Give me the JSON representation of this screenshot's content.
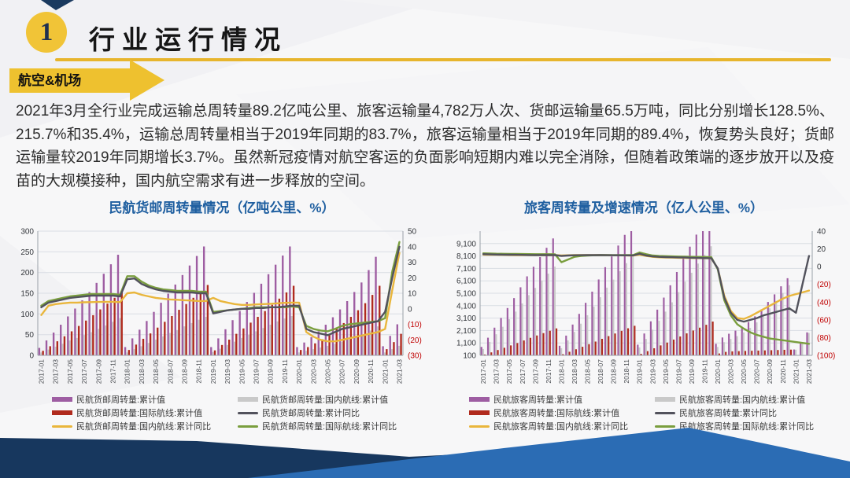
{
  "slide": {
    "section_number": "1",
    "title": "行业运行情况",
    "banner": "航空&机场",
    "paragraph": "2021年3月全行业完成运输总周转量89.2亿吨公里、旅客运输量4,782万人次、货邮运输量65.5万吨，同比分别增长128.5%、215.7%和35.4%，运输总周转量相当于2019年同期的83.7%，旅客运输量相当于2019年同期的89.4%，恢复势头良好；货邮运输量较2019年同期增长3.7%。虽然新冠疫情对航空客运的负面影响短期内难以完全消除，但随着政策端的逐步放开以及疫苗的大规模接种，国内航空需求有进一步释放的空间。"
  },
  "colors": {
    "accent_yellow": "#EEC12F",
    "navy": "#17375E",
    "mid_blue": "#2B6CB4",
    "title_blue": "#1F5FA0",
    "bar_purple": "#9E5DA2",
    "bar_red": "#B02A1D",
    "bar_gray": "#C9C9C9",
    "line_dark": "#52525C",
    "line_yellow": "#E9B63C",
    "line_green": "#7A9E3E",
    "neg_red": "#C00000"
  },
  "chart_data": [
    {
      "type": "combo_bar_line",
      "title": "民航货邮周转量情况（亿吨公里、%）",
      "n_points": 51,
      "x_labels": [
        "2017-01",
        "2017-03",
        "2017-05",
        "2017-07",
        "2017-09",
        "2017-11",
        "2018-01",
        "2018-03",
        "2018-05",
        "2018-07",
        "2018-09",
        "2018-11",
        "2019-01",
        "2019-03",
        "2019-05",
        "2019-07",
        "2019-09",
        "2019-11",
        "2020-01",
        "2020-03",
        "2020-05",
        "2020-07",
        "2020-09",
        "2020-11",
        "2021-01",
        "2021-03"
      ],
      "left_axis": {
        "min": 0,
        "max": 300,
        "ticks": [
          0,
          50,
          100,
          150,
          200,
          250,
          300
        ],
        "labels": [
          "0",
          "50",
          "100",
          "150",
          "200",
          "250",
          "300"
        ]
      },
      "right_axis": {
        "min": -30,
        "max": 50,
        "ticks": [
          50,
          40,
          30,
          20,
          10,
          0,
          -10,
          -20,
          -30
        ],
        "labels": [
          "50",
          "40",
          "30",
          "20",
          "10",
          "0",
          "(10)",
          "(20)",
          "(30)"
        ]
      },
      "bars": [
        {
          "name": "民航货邮周转量:累计值",
          "color": "bar_purple",
          "axis": "left",
          "values": [
            18,
            36,
            55,
            74,
            94,
            113,
            133,
            153,
            175,
            197,
            220,
            243,
            20,
            41,
            62,
            83,
            105,
            127,
            149,
            171,
            194,
            217,
            240,
            263,
            20,
            41,
            63,
            85,
            107,
            129,
            151,
            173,
            196,
            219,
            241,
            263,
            20,
            31,
            44,
            58,
            74,
            92,
            111,
            131,
            153,
            176,
            206,
            238,
            22,
            47,
            75
          ]
        },
        {
          "name": "民航货邮周转量:国内航线:累计值",
          "color": "bar_gray",
          "axis": "left",
          "values": [
            7,
            14,
            21,
            28,
            36,
            42,
            49,
            56,
            64,
            72,
            81,
            90,
            7,
            15,
            22,
            30,
            38,
            46,
            54,
            61,
            70,
            78,
            86,
            93,
            8,
            16,
            25,
            33,
            42,
            50,
            58,
            66,
            74,
            82,
            89,
            95,
            7,
            11,
            15,
            19,
            23,
            28,
            33,
            38,
            44,
            50,
            60,
            70,
            7,
            15,
            23
          ]
        },
        {
          "name": "民航货邮周转量:国际航线:累计值",
          "color": "bar_red",
          "axis": "left",
          "values": [
            11,
            22,
            34,
            46,
            58,
            71,
            84,
            97,
            111,
            125,
            139,
            153,
            13,
            26,
            40,
            53,
            67,
            81,
            95,
            110,
            124,
            139,
            154,
            170,
            12,
            25,
            38,
            52,
            65,
            79,
            93,
            107,
            122,
            137,
            152,
            168,
            13,
            20,
            29,
            39,
            51,
            64,
            78,
            93,
            109,
            126,
            146,
            168,
            15,
            32,
            52
          ]
        }
      ],
      "lines": [
        {
          "name": "民航货邮周转量:国内航线:累计同比",
          "color": "line_yellow",
          "axis": "right",
          "values": [
            -4,
            2,
            3,
            3.5,
            4,
            4,
            4.2,
            4.3,
            4.4,
            4.5,
            4.5,
            4.3,
            10,
            10.5,
            9,
            8,
            7,
            6.5,
            6,
            5.8,
            5.5,
            5.3,
            5,
            5,
            7,
            5,
            4,
            3,
            2.5,
            2.5,
            2.8,
            3,
            3.2,
            3.5,
            3.8,
            4,
            4,
            -15,
            -18,
            -20,
            -21,
            -21,
            -20,
            -19,
            -18,
            -17,
            -16,
            -15,
            -13,
            12,
            36
          ]
        },
        {
          "name": "民航货邮周转量:国际航线:累计同比",
          "color": "line_green",
          "axis": "right",
          "values": [
            2,
            5,
            6,
            7,
            8,
            8.5,
            9,
            9.5,
            9.5,
            9.5,
            9.5,
            9,
            21,
            21,
            17.5,
            15,
            13.5,
            12.5,
            12,
            11.5,
            11.5,
            11.5,
            11,
            11,
            -2,
            -1.5,
            -1,
            -0.5,
            0,
            0.5,
            1,
            1,
            1,
            1,
            1,
            1.5,
            1,
            -11,
            -13,
            -14,
            -14.5,
            -13,
            -11,
            -10,
            -9.5,
            -9,
            -8.5,
            -8,
            -6,
            24,
            43
          ]
        },
        {
          "name": "民航货邮周转量:累计同比",
          "color": "line_dark",
          "axis": "right",
          "values": [
            1,
            4,
            5,
            6,
            7,
            7.5,
            8,
            8.5,
            8.5,
            8.5,
            8.5,
            8,
            19,
            19.5,
            16,
            14,
            12.5,
            11.5,
            11,
            10.5,
            10.5,
            10.5,
            10,
            10,
            -3,
            -2,
            -1,
            -0.5,
            0,
            0,
            0.5,
            0.5,
            1,
            1,
            1.5,
            2,
            2,
            -13,
            -15,
            -16,
            -17,
            -15,
            -13,
            -12,
            -11,
            -10,
            -9,
            -8,
            -2,
            20,
            40
          ]
        }
      ],
      "legend": [
        {
          "label": "民航货邮周转量:累计值",
          "color": "bar_purple",
          "kind": "bar"
        },
        {
          "label": "民航货邮周转量:国内航线:累计值",
          "color": "bar_gray",
          "kind": "bar"
        },
        {
          "label": "民航货邮周转量:国际航线:累计值",
          "color": "bar_red",
          "kind": "bar"
        },
        {
          "label": "民航货邮周转量:累计同比",
          "color": "line_dark",
          "kind": "line"
        },
        {
          "label": "民航货邮周转量:国内航线:累计同比",
          "color": "line_yellow",
          "kind": "line"
        },
        {
          "label": "民航货邮周转量:国际航线:累计同比",
          "color": "line_green",
          "kind": "line"
        }
      ]
    },
    {
      "type": "combo_bar_line",
      "title": "旅客周转量及增速情况（亿人公里、%）",
      "n_points": 51,
      "x_labels": [
        "2017-01",
        "2017-03",
        "2017-05",
        "2017-07",
        "2017-09",
        "2017-11",
        "2018-01",
        "2018-03",
        "2018-05",
        "2018-07",
        "2018-09",
        "2018-11",
        "2019-01",
        "2019-03",
        "2019-05",
        "2019-07",
        "2019-09",
        "2019-11",
        "2020-01",
        "2020-03",
        "2020-05",
        "2020-07",
        "2020-09",
        "2020-11",
        "2021-01",
        "2021-03"
      ],
      "left_axis": {
        "min": 100,
        "max": 10100,
        "ticks": [
          100,
          1100,
          2100,
          3100,
          4100,
          5100,
          6100,
          7100,
          8100,
          9100
        ],
        "labels": [
          "100",
          "1,100",
          "2,100",
          "3,100",
          "4,100",
          "5,100",
          "6,100",
          "7,100",
          "8,100",
          "9,100"
        ]
      },
      "right_axis": {
        "min": -100,
        "max": 40,
        "ticks": [
          40,
          20,
          0,
          -20,
          -40,
          -60,
          -80,
          -100
        ],
        "labels": [
          "40",
          "20",
          "0",
          "(20)",
          "(40)",
          "(60)",
          "(80)",
          "(100)"
        ]
      },
      "bars": [
        {
          "name": "民航旅客周转量:累计值",
          "color": "bar_purple",
          "axis": "left",
          "values": [
            780,
            1520,
            2330,
            3110,
            3910,
            4710,
            5580,
            6460,
            7230,
            8010,
            8760,
            9513,
            870,
            1690,
            2580,
            3440,
            4330,
            5230,
            6210,
            7200,
            8060,
            8940,
            9800,
            10712,
            960,
            1860,
            2840,
            3780,
            4750,
            5740,
            6810,
            7900,
            8850,
            9820,
            10760,
            11705,
            1030,
            1540,
            1840,
            2090,
            2400,
            2780,
            3240,
            3800,
            4400,
            5010,
            5660,
            6311,
            570,
            1180,
            1950
          ]
        },
        {
          "name": "民航旅客周转量:国内航线:累计值",
          "color": "bar_gray",
          "axis": "left",
          "values": [
            610,
            1180,
            1800,
            2400,
            3010,
            3620,
            4280,
            4950,
            5530,
            6120,
            6680,
            7243,
            675,
            1300,
            1990,
            2650,
            3330,
            4020,
            4780,
            5550,
            6200,
            6870,
            7520,
            8232,
            740,
            1420,
            2170,
            2880,
            3620,
            4370,
            5190,
            6030,
            6750,
            7490,
            8200,
            8885,
            780,
            1160,
            1420,
            1650,
            1945,
            2310,
            2755,
            3300,
            3885,
            4480,
            5115,
            5751,
            555,
            1150,
            1905
          ]
        },
        {
          "name": "民航旅客周转量:国际航线:累计值",
          "color": "bar_red",
          "axis": "left",
          "values": [
            170,
            340,
            530,
            710,
            900,
            1090,
            1300,
            1510,
            1700,
            1890,
            2080,
            2270,
            195,
            390,
            590,
            790,
            1000,
            1210,
            1430,
            1650,
            1860,
            2070,
            2280,
            2480,
            220,
            440,
            670,
            900,
            1130,
            1370,
            1620,
            1870,
            2100,
            2330,
            2560,
            2820,
            250,
            380,
            420,
            440,
            455,
            470,
            485,
            500,
            515,
            530,
            545,
            560,
            15,
            30,
            45
          ]
        }
      ],
      "lines": [
        {
          "name": "民航旅客周转量:国内航线:累计同比",
          "color": "line_yellow",
          "axis": "right",
          "values": [
            13.5,
            13.4,
            13.3,
            13.2,
            13.1,
            13,
            13,
            13,
            13,
            13,
            13,
            13,
            12.5,
            12.8,
            13,
            13,
            13,
            13,
            13,
            12.9,
            12.8,
            12.7,
            12.6,
            12.5,
            13.5,
            12,
            11,
            10.5,
            10.3,
            10.1,
            10,
            9.8,
            9.7,
            9.6,
            9.5,
            9.4,
            -2,
            -33,
            -50,
            -58,
            -59,
            -56,
            -52,
            -48,
            -44,
            -40,
            -36,
            -33,
            -31,
            -29,
            -27
          ]
        },
        {
          "name": "民航旅客周转量:国际航线:累计同比",
          "color": "line_green",
          "axis": "right",
          "values": [
            15,
            14.8,
            14.6,
            14.5,
            14.4,
            14.3,
            14.2,
            14.1,
            14,
            14,
            14,
            13.9,
            5,
            8,
            11,
            12,
            12.5,
            12.8,
            13,
            13,
            13,
            13,
            13,
            13,
            16,
            14,
            12.5,
            12,
            11.8,
            11.6,
            11.4,
            11.2,
            11,
            10.9,
            10.8,
            10.7,
            -3,
            -38,
            -55,
            -65,
            -70,
            -74,
            -77,
            -79,
            -81,
            -82,
            -83,
            -84,
            -85,
            -86,
            -87
          ]
        },
        {
          "name": "民航旅客周转量:累计同比",
          "color": "line_dark",
          "axis": "right",
          "values": [
            14,
            13.8,
            13.6,
            13.5,
            13.4,
            13.3,
            13.2,
            13.1,
            13,
            13,
            13,
            13,
            12,
            12.5,
            12.8,
            12.9,
            13,
            13,
            13,
            12.9,
            12.8,
            12.8,
            12.7,
            12.6,
            14.5,
            12.5,
            11.5,
            11,
            10.8,
            10.6,
            10.4,
            10.2,
            10,
            9.8,
            9.6,
            9.5,
            -2,
            -35,
            -52,
            -60,
            -62,
            -60,
            -58,
            -55,
            -53,
            -51,
            -49,
            -47,
            -52,
            -20,
            12
          ]
        }
      ],
      "legend": [
        {
          "label": "民航旅客周转量:累计值",
          "color": "bar_purple",
          "kind": "bar"
        },
        {
          "label": "民航旅客周转量:国内航线:累计值",
          "color": "bar_gray",
          "kind": "bar"
        },
        {
          "label": "民航旅客周转量:国际航线:累计值",
          "color": "bar_red",
          "kind": "bar"
        },
        {
          "label": "民航旅客周转量:累计同比",
          "color": "line_dark",
          "kind": "line"
        },
        {
          "label": "民航旅客周转量:国内航线:累计同比",
          "color": "line_yellow",
          "kind": "line"
        },
        {
          "label": "民航旅客周转量:国际航线:累计同比",
          "color": "line_green",
          "kind": "line"
        }
      ]
    }
  ]
}
